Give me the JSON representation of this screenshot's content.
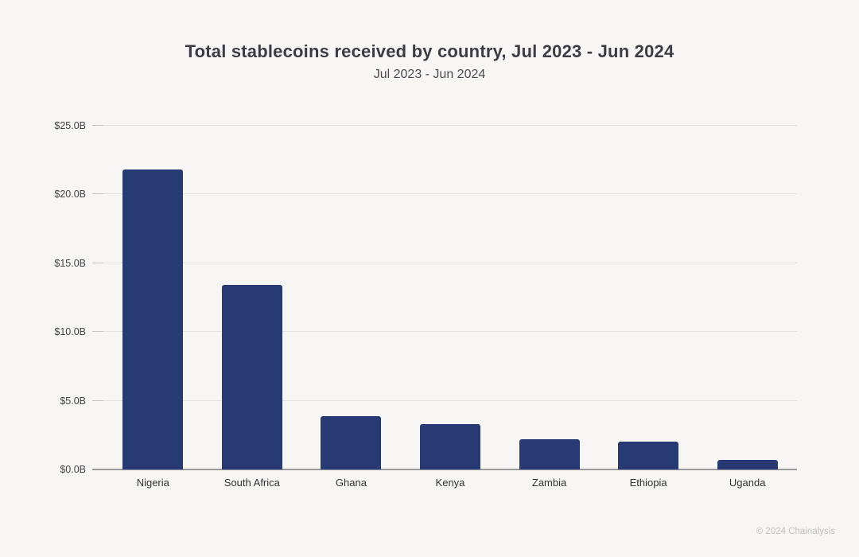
{
  "chart": {
    "title": "Total stablecoins received by country, Jul 2023 - Jun 2024",
    "subtitle": "Jul 2023 - Jun 2024"
  },
  "footer": {
    "copyright": "© 2024 Chainalysis"
  },
  "colors": {
    "bar": "#283a73",
    "background": "#f7f6f4",
    "gridline": "#e4e3e1",
    "baseline": "#9a9a9a"
  },
  "chart_data": {
    "type": "bar",
    "title": "Total stablecoins received by country, Jul 2023 - Jun 2024",
    "subtitle": "Jul 2023 - Jun 2024",
    "categories": [
      "Nigeria",
      "South Africa",
      "Ghana",
      "Kenya",
      "Zambia",
      "Ethiopia",
      "Uganda"
    ],
    "values": [
      21.8,
      13.4,
      3.9,
      3.3,
      2.2,
      2.0,
      0.7
    ],
    "unit": "USD billions",
    "xlabel": "",
    "ylabel": "",
    "ylim": [
      0,
      25
    ],
    "ytick_step": 5,
    "ytick_labels": [
      "$0.0B",
      "$5.0B",
      "$10.0B",
      "$15.0B",
      "$20.0B",
      "$25.0B"
    ],
    "grid": true,
    "legend": "none",
    "bar_color": "#283a73"
  }
}
